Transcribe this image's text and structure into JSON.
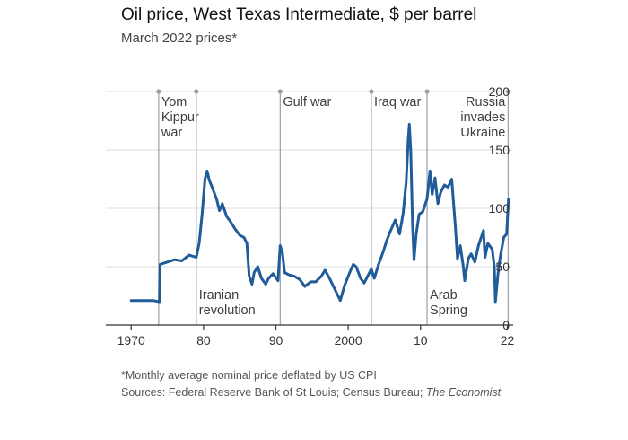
{
  "title": "Oil price, West Texas Intermediate, $ per barrel",
  "subtitle": "March 2022 prices*",
  "footnote": "*Monthly average nominal price deflated by US CPI",
  "sources_prefix": "Sources: Federal Reserve Bank of St Louis; Census Bureau; ",
  "sources_italic": "The Economist",
  "colors": {
    "line": "#1f5c99",
    "grid": "#d9dee2",
    "axis": "#333333",
    "event": "#9aa0a6"
  },
  "chart_data": {
    "type": "line",
    "title": "Oil price, West Texas Intermediate, $ per barrel",
    "subtitle": "March 2022 prices*",
    "xlim": [
      1966.5,
      2022.8
    ],
    "ylim": [
      0,
      200
    ],
    "x_ticks": [
      {
        "value": 1970,
        "label": "1970"
      },
      {
        "value": 1980,
        "label": "80"
      },
      {
        "value": 1990,
        "label": "90"
      },
      {
        "value": 2000,
        "label": "2000"
      },
      {
        "value": 2010,
        "label": "10"
      },
      {
        "value": 2022,
        "label": "22"
      }
    ],
    "y_ticks": [
      0,
      50,
      100,
      150,
      200
    ],
    "y_axis_side": "right",
    "grid": true,
    "events": [
      {
        "x": 1973.8,
        "lines": [
          "Yom",
          "Kippur",
          "war"
        ],
        "label_pos": "top"
      },
      {
        "x": 1979.0,
        "lines": [
          "Iranian",
          "revolution"
        ],
        "label_pos": "bottom"
      },
      {
        "x": 1990.6,
        "lines": [
          "Gulf war"
        ],
        "label_pos": "top"
      },
      {
        "x": 2003.2,
        "lines": [
          "Iraq war"
        ],
        "label_pos": "top"
      },
      {
        "x": 2010.9,
        "lines": [
          "Arab",
          "Spring"
        ],
        "label_pos": "bottom"
      },
      {
        "x": 2022.1,
        "lines": [
          "Russia",
          "invades",
          "Ukraine"
        ],
        "label_pos": "top"
      }
    ],
    "series": [
      {
        "values": [
          [
            1970.0,
            21
          ],
          [
            1971.0,
            21
          ],
          [
            1972.0,
            21
          ],
          [
            1973.0,
            21
          ],
          [
            1973.9,
            20
          ],
          [
            1974.0,
            52
          ],
          [
            1975.0,
            54
          ],
          [
            1976.0,
            56
          ],
          [
            1977.0,
            55
          ],
          [
            1978.0,
            60
          ],
          [
            1979.0,
            58
          ],
          [
            1979.4,
            70
          ],
          [
            1979.8,
            95
          ],
          [
            1980.2,
            125
          ],
          [
            1980.5,
            132
          ],
          [
            1980.8,
            124
          ],
          [
            1981.2,
            118
          ],
          [
            1981.8,
            108
          ],
          [
            1982.2,
            98
          ],
          [
            1982.6,
            104
          ],
          [
            1983.2,
            93
          ],
          [
            1983.8,
            88
          ],
          [
            1984.4,
            82
          ],
          [
            1985.0,
            77
          ],
          [
            1985.6,
            75
          ],
          [
            1986.0,
            70
          ],
          [
            1986.3,
            42
          ],
          [
            1986.7,
            35
          ],
          [
            1987.0,
            45
          ],
          [
            1987.5,
            50
          ],
          [
            1988.0,
            40
          ],
          [
            1988.6,
            35
          ],
          [
            1989.0,
            40
          ],
          [
            1989.6,
            44
          ],
          [
            1990.3,
            38
          ],
          [
            1990.6,
            68
          ],
          [
            1990.9,
            62
          ],
          [
            1991.2,
            45
          ],
          [
            1991.8,
            43
          ],
          [
            1992.5,
            42
          ],
          [
            1993.3,
            39
          ],
          [
            1994.0,
            33
          ],
          [
            1994.8,
            37
          ],
          [
            1995.5,
            37
          ],
          [
            1996.3,
            42
          ],
          [
            1996.8,
            47
          ],
          [
            1997.5,
            39
          ],
          [
            1998.2,
            30
          ],
          [
            1998.9,
            21
          ],
          [
            1999.5,
            34
          ],
          [
            2000.2,
            45
          ],
          [
            2000.7,
            52
          ],
          [
            2001.1,
            50
          ],
          [
            2001.7,
            40
          ],
          [
            2002.2,
            36
          ],
          [
            2002.7,
            42
          ],
          [
            2003.2,
            48
          ],
          [
            2003.6,
            40
          ],
          [
            2004.2,
            52
          ],
          [
            2004.8,
            62
          ],
          [
            2005.3,
            72
          ],
          [
            2005.8,
            80
          ],
          [
            2006.5,
            90
          ],
          [
            2007.1,
            78
          ],
          [
            2007.6,
            96
          ],
          [
            2008.0,
            122
          ],
          [
            2008.3,
            160
          ],
          [
            2008.45,
            172
          ],
          [
            2008.65,
            148
          ],
          [
            2008.9,
            85
          ],
          [
            2009.1,
            56
          ],
          [
            2009.4,
            78
          ],
          [
            2009.8,
            95
          ],
          [
            2010.3,
            97
          ],
          [
            2010.9,
            108
          ],
          [
            2011.3,
            132
          ],
          [
            2011.6,
            112
          ],
          [
            2012.0,
            126
          ],
          [
            2012.4,
            104
          ],
          [
            2012.8,
            114
          ],
          [
            2013.3,
            120
          ],
          [
            2013.8,
            118
          ],
          [
            2014.3,
            125
          ],
          [
            2014.8,
            85
          ],
          [
            2015.1,
            57
          ],
          [
            2015.5,
            68
          ],
          [
            2015.9,
            50
          ],
          [
            2016.1,
            38
          ],
          [
            2016.6,
            57
          ],
          [
            2017.0,
            61
          ],
          [
            2017.5,
            54
          ],
          [
            2018.0,
            68
          ],
          [
            2018.7,
            81
          ],
          [
            2018.9,
            58
          ],
          [
            2019.3,
            70
          ],
          [
            2019.9,
            65
          ],
          [
            2020.2,
            50
          ],
          [
            2020.35,
            20
          ],
          [
            2020.7,
            44
          ],
          [
            2021.0,
            58
          ],
          [
            2021.5,
            75
          ],
          [
            2021.9,
            78
          ],
          [
            2022.15,
            108
          ]
        ]
      }
    ]
  }
}
